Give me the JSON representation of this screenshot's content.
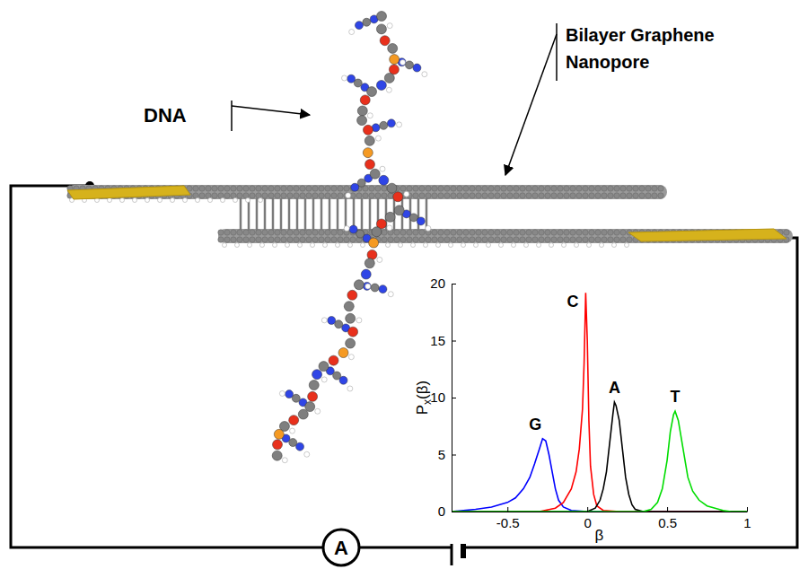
{
  "diagram": {
    "dna_label": "DNA",
    "pore_label": [
      "Bilayer Graphene",
      "Nanopore"
    ],
    "meter_label": "A"
  },
  "chart_data": {
    "type": "line",
    "x_label": "β",
    "y_label": "Px(β)",
    "xlim": [
      -0.85,
      1
    ],
    "xticks": [
      -0.5,
      0,
      0.5,
      1
    ],
    "ylim": [
      0,
      20
    ],
    "yticks": [
      0,
      5,
      10,
      15,
      20
    ],
    "grid": false,
    "series": [
      {
        "name": "G",
        "color": "#0000ff",
        "x": [
          -0.85,
          -0.7,
          -0.6,
          -0.5,
          -0.45,
          -0.4,
          -0.36,
          -0.33,
          -0.3,
          -0.28,
          -0.26,
          -0.24,
          -0.22,
          -0.2,
          -0.18,
          -0.15,
          -0.1,
          0,
          0.5,
          1
        ],
        "values": [
          0,
          0.2,
          0.4,
          0.8,
          1.2,
          2.0,
          3.0,
          4.2,
          5.5,
          6.4,
          6.2,
          5.0,
          3.5,
          2.0,
          1.0,
          0.4,
          0.1,
          0,
          0,
          0
        ]
      },
      {
        "name": "C",
        "color": "#ff0000",
        "x": [
          -0.85,
          -0.3,
          -0.2,
          -0.15,
          -0.1,
          -0.07,
          -0.05,
          -0.03,
          -0.02,
          -0.01,
          0,
          0.01,
          0.02,
          0.04,
          0.06,
          0.1,
          0.2,
          1
        ],
        "values": [
          0,
          0,
          0.3,
          0.8,
          2.0,
          3.5,
          5.5,
          9.0,
          13.0,
          19.2,
          15.0,
          8.0,
          4.0,
          1.5,
          0.5,
          0.1,
          0,
          0
        ]
      },
      {
        "name": "A",
        "color": "#000000",
        "x": [
          -0.85,
          0,
          0.05,
          0.08,
          0.1,
          0.12,
          0.14,
          0.16,
          0.17,
          0.18,
          0.2,
          0.22,
          0.24,
          0.26,
          0.28,
          0.3,
          0.35,
          1
        ],
        "values": [
          0,
          0,
          0.3,
          1.0,
          2.0,
          3.5,
          6.0,
          8.5,
          9.6,
          9.3,
          8.0,
          5.5,
          3.0,
          1.5,
          0.6,
          0.2,
          0,
          0
        ]
      },
      {
        "name": "T",
        "color": "#00dd00",
        "x": [
          -0.85,
          0.35,
          0.4,
          0.44,
          0.47,
          0.5,
          0.52,
          0.54,
          0.55,
          0.57,
          0.6,
          0.63,
          0.66,
          0.7,
          0.75,
          0.8,
          0.85,
          0.9,
          1
        ],
        "values": [
          0,
          0,
          0.2,
          0.8,
          2.0,
          4.5,
          7.0,
          8.5,
          8.8,
          8.0,
          5.5,
          3.0,
          1.8,
          1.0,
          0.5,
          0.3,
          0.1,
          0,
          0
        ]
      }
    ]
  }
}
